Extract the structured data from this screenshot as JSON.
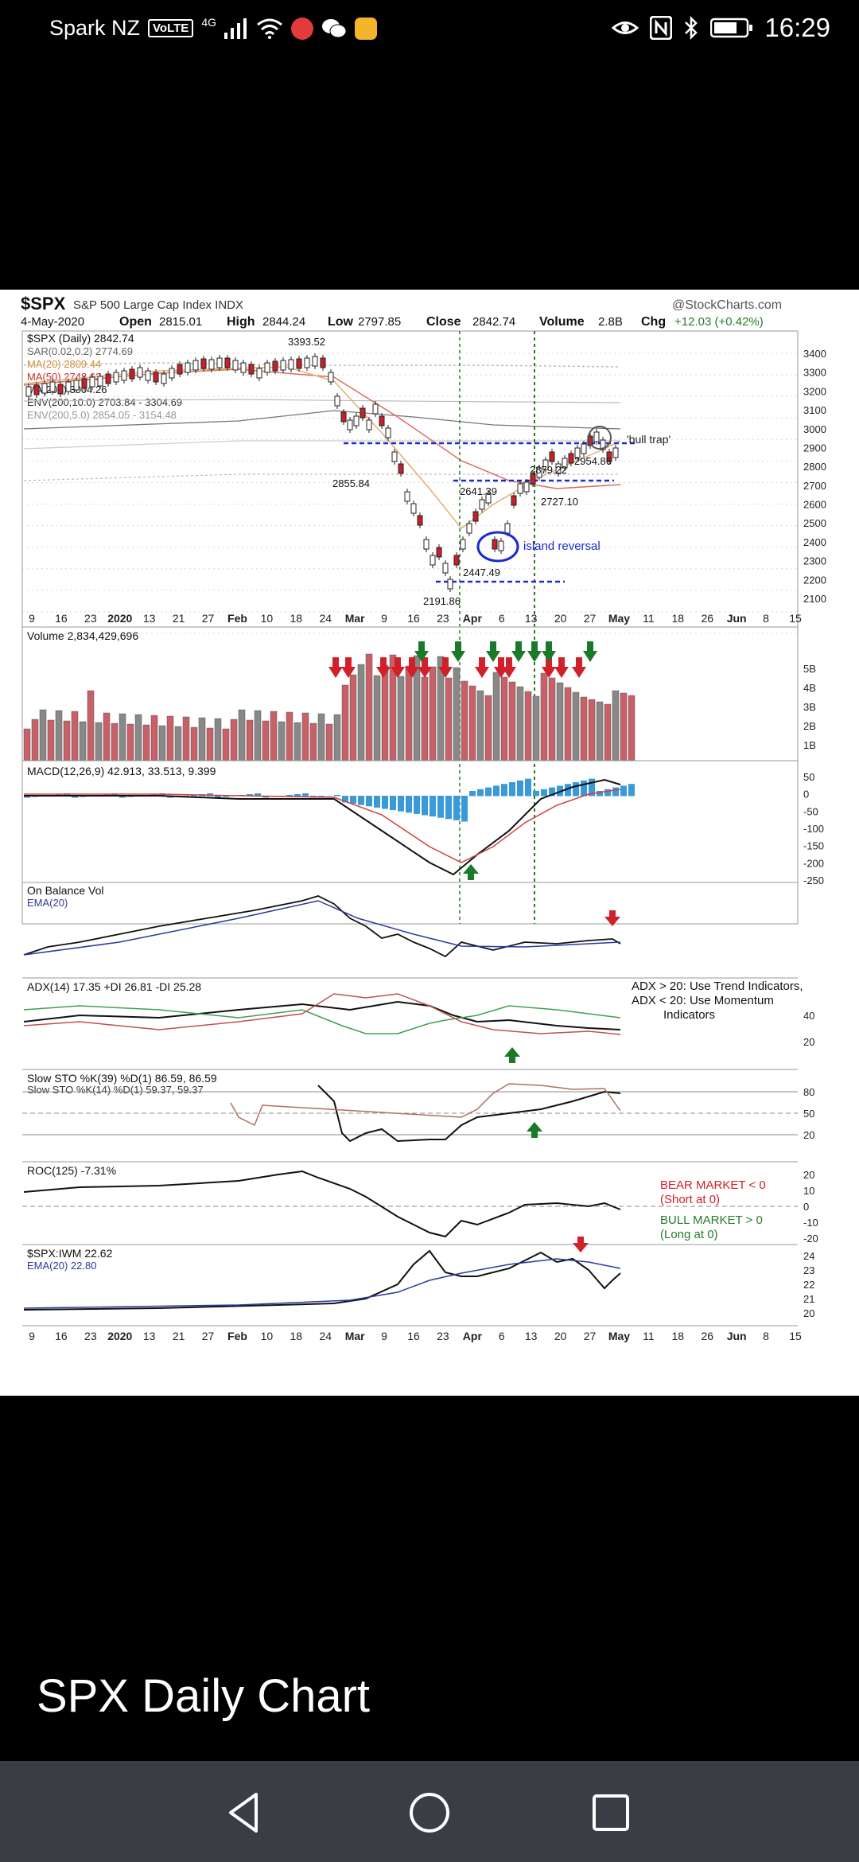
{
  "status_bar": {
    "carrier": "Spark NZ",
    "volte": "VoLTE",
    "network": "4G",
    "time": "16:29",
    "icons": [
      "signal-icon",
      "wifi-icon",
      "search-app-icon",
      "wechat-icon",
      "mail-icon",
      "eye-icon",
      "nfc-icon",
      "bluetooth-icon",
      "battery-icon"
    ]
  },
  "chart": {
    "ticker": "$SPX",
    "name": "S&P 500 Large Cap Index  INDX",
    "watermark": "@StockCharts.com",
    "date": "4-May-2020",
    "open_label": "Open",
    "open": "2815.01",
    "high_label": "High",
    "high": "2844.24",
    "low_label": "Low",
    "low": "2797.85",
    "close_label": "Close",
    "close": "2842.74",
    "volume_label": "Volume",
    "volume": "2.8B",
    "chg_label": "Chg",
    "chg": "+12.03 (+0.42%)",
    "legend": {
      "main": "$SPX (Daily) 2842.74",
      "sar": "SAR(0.02,0.2) 2774.69",
      "ma20": "MA(20) 2809.44",
      "ma50": "MA(50) 2748.62",
      "ma200": "MA(200) 3004.26",
      "env10": "ENV(200,10.0) 2703.84 - 3304.69",
      "env5": "ENV(200,5.0) 2854.05 - 3154.48"
    },
    "annotations": {
      "high": "3393.52",
      "low1": "2855.84",
      "low2": "2191.86",
      "a2641": "2641.39",
      "a2447": "2447.49",
      "a2727": "2727.10",
      "a2879": "2879.22",
      "a2954": "2954.86",
      "bull_trap": "'bull trap'",
      "island": "island reversal"
    },
    "price_axis": [
      "3400",
      "3300",
      "3200",
      "3100",
      "3000",
      "2900",
      "2800",
      "2700",
      "2600",
      "2500",
      "2400",
      "2300",
      "2200",
      "2100"
    ],
    "date_axis": [
      "9",
      "16",
      "23",
      "2020",
      "13",
      "21",
      "27",
      "Feb",
      "10",
      "18",
      "24",
      "Mar",
      "9",
      "16",
      "23",
      "Apr",
      "6",
      "13",
      "20",
      "27",
      "May",
      "11",
      "18",
      "26",
      "Jun",
      "8",
      "15"
    ],
    "volume_panel": {
      "label": "Volume 2,834,429,696",
      "axis": [
        "5B",
        "4B",
        "3B",
        "2B",
        "1B"
      ]
    },
    "macd_panel": {
      "label": "MACD(12,26,9) 42.913, 33.513, 9.399",
      "axis": [
        "50",
        "0",
        "-50",
        "-100",
        "-150",
        "-200",
        "-250"
      ]
    },
    "obv_panel": {
      "label": "On Balance Vol",
      "ema": "EMA(20)"
    },
    "adx_panel": {
      "label": "ADX(14) 17.35 +DI 26.81 -DI 25.28",
      "axis": [
        "40",
        "20"
      ],
      "note1": "ADX > 20: Use Trend Indicators,",
      "note2": "ADX < 20: Use Momentum",
      "note3": "Indicators"
    },
    "sto_panel": {
      "label": "Slow STO %K(39) %D(1) 86.59, 86.59",
      "label2": "Slow STO %K(14) %D(1) 59.37, 59.37",
      "axis": [
        "80",
        "50",
        "20"
      ]
    },
    "roc_panel": {
      "label": "ROC(125) -7.31%",
      "axis": [
        "20",
        "10",
        "0",
        "-10",
        "-20"
      ],
      "bear": "BEAR MARKET < 0",
      "bear_sub": "(Short at 0)",
      "bull": "BULL MARKET > 0",
      "bull_sub": "(Long at 0)"
    },
    "ratio_panel": {
      "label": "$SPX:IWM 22.62",
      "ema": "EMA(20) 22.80",
      "axis": [
        "24",
        "23",
        "22",
        "21",
        "20"
      ]
    },
    "colors": {
      "up": "#2a7a2a",
      "down": "#c8202a",
      "blue": "#1a2ad0",
      "grid": "#cfcfcf"
    }
  },
  "caption": "SPX Daily Chart",
  "nav": {
    "back": "back-icon",
    "home": "home-icon",
    "recents": "recents-icon"
  }
}
